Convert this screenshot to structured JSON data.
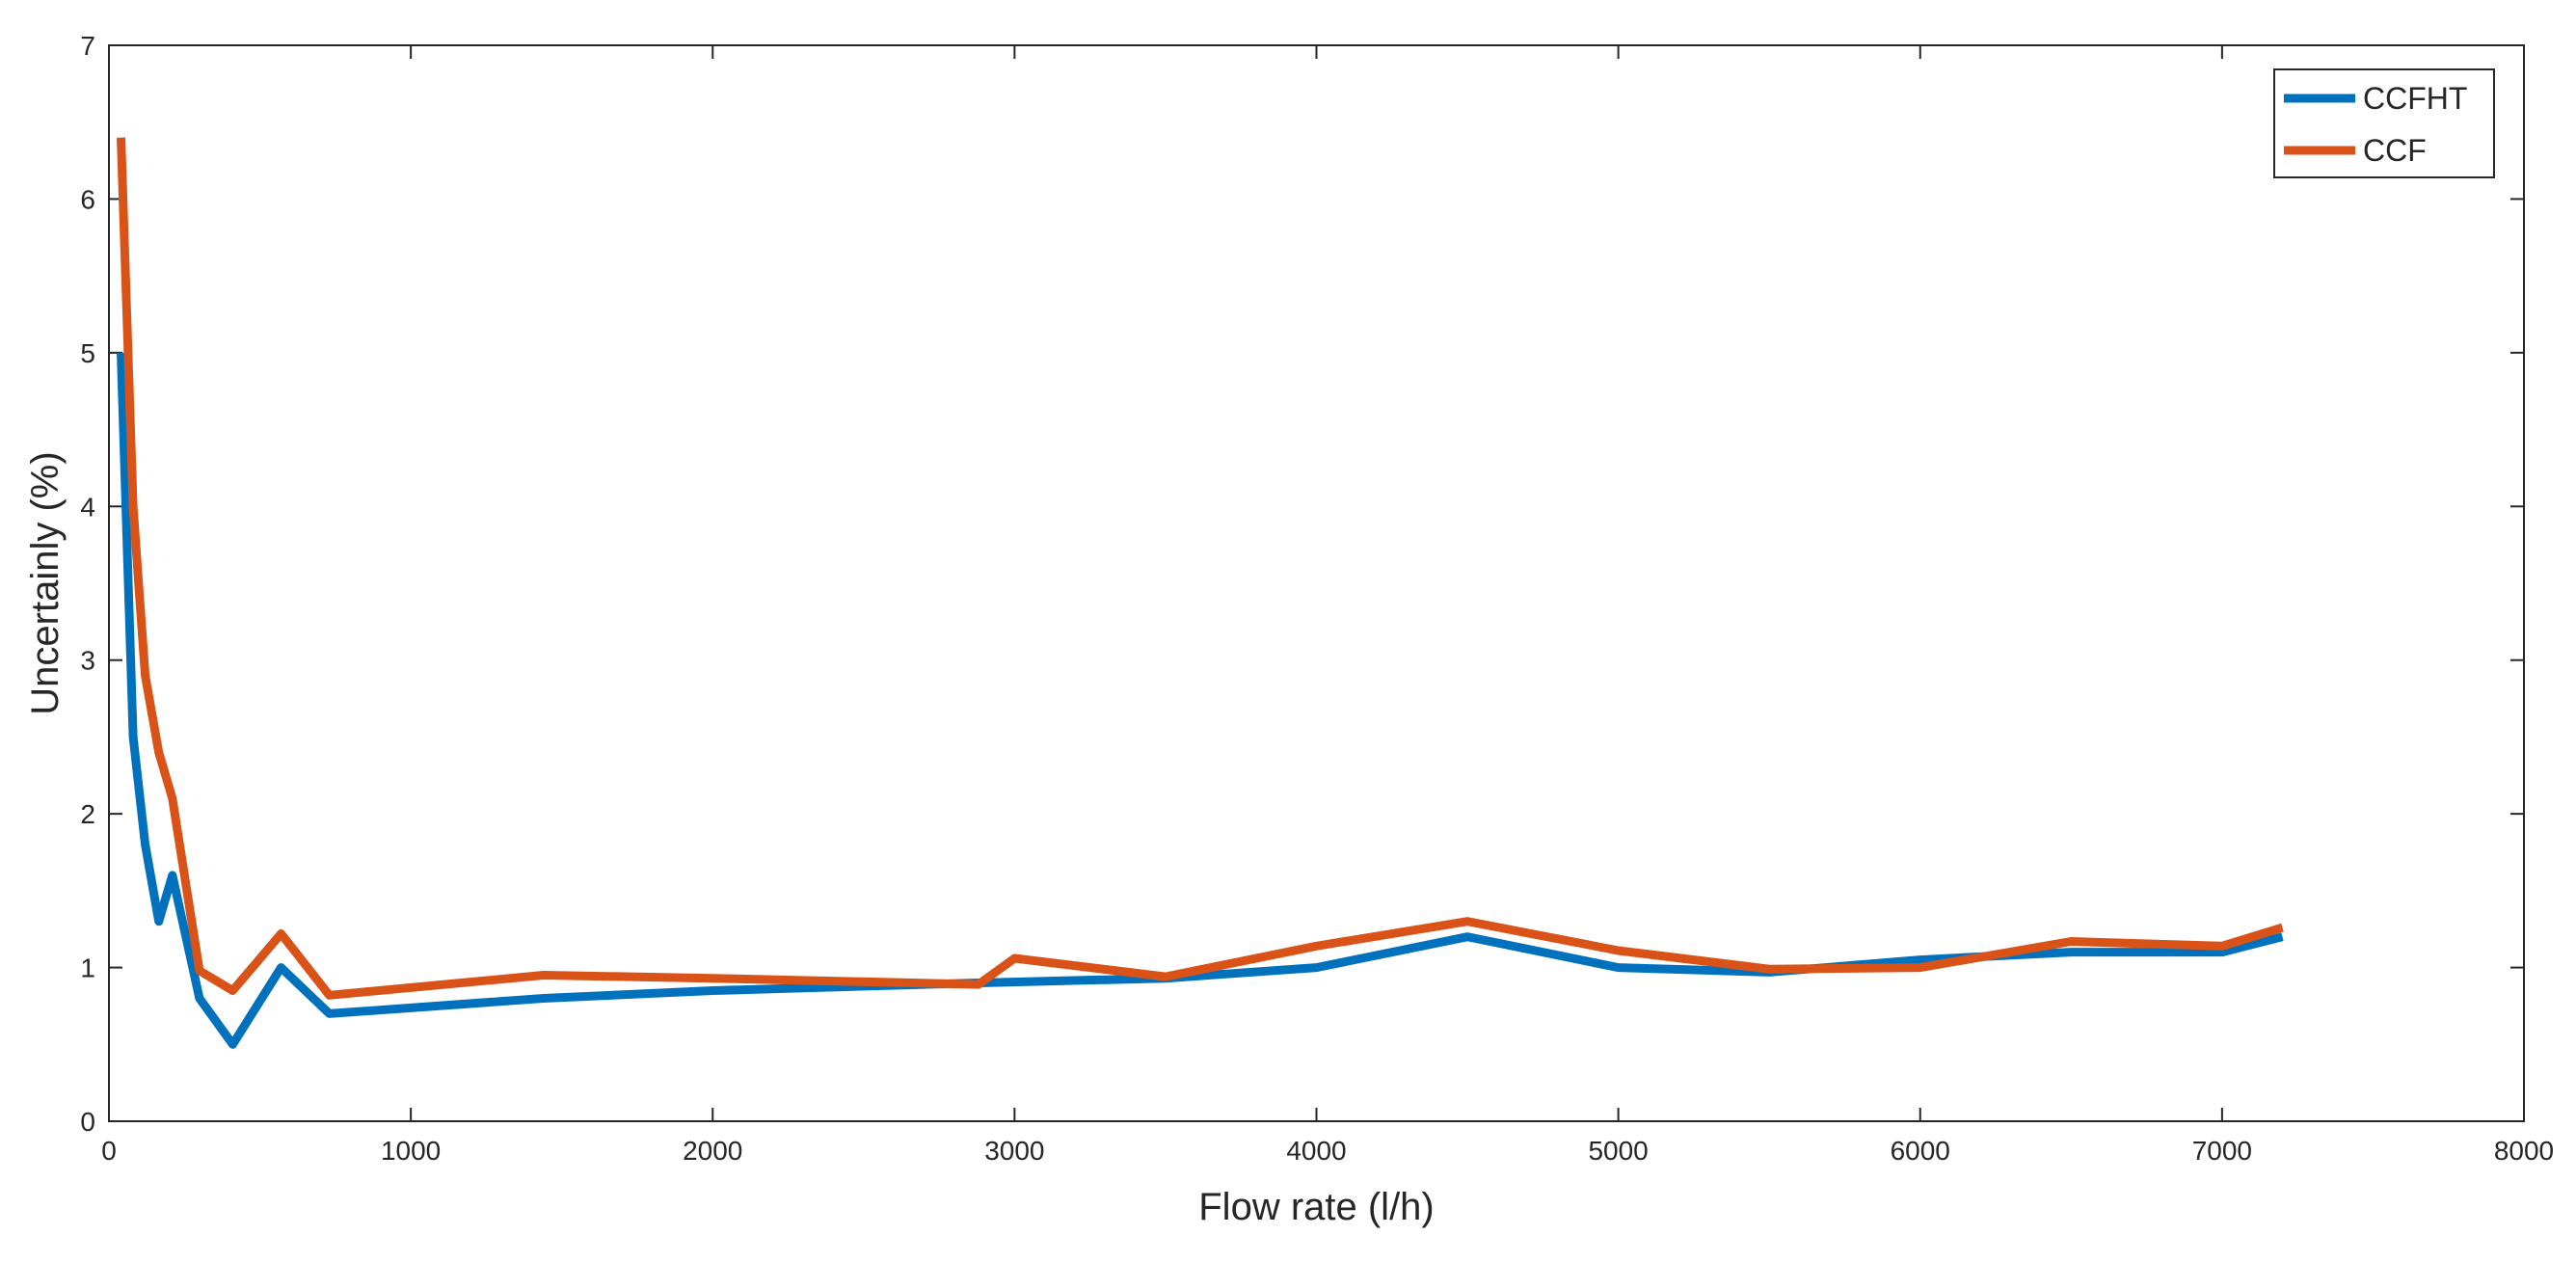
{
  "chart_data": {
    "type": "line",
    "title": "",
    "xlabel": "Flow rate (l/h)",
    "ylabel": "Uncertainly (%)",
    "xlim": [
      0,
      8000
    ],
    "ylim": [
      0,
      7
    ],
    "xticks": [
      0,
      1000,
      2000,
      3000,
      4000,
      5000,
      6000,
      7000,
      8000
    ],
    "yticks": [
      0,
      1,
      2,
      3,
      4,
      5,
      6,
      7
    ],
    "grid": false,
    "box": true,
    "legend_position": "top-right",
    "series": [
      {
        "name": "CCFHT",
        "color": "#0072BD",
        "points": [
          [
            40,
            5.0
          ],
          [
            80,
            2.5
          ],
          [
            120,
            1.8
          ],
          [
            165,
            1.3
          ],
          [
            210,
            1.6
          ],
          [
            300,
            0.8
          ],
          [
            410,
            0.5
          ],
          [
            570,
            1.0
          ],
          [
            730,
            0.7
          ],
          [
            1440,
            0.8
          ],
          [
            2000,
            0.85
          ],
          [
            2880,
            0.9
          ],
          [
            3500,
            0.93
          ],
          [
            4000,
            1.0
          ],
          [
            4500,
            1.2
          ],
          [
            5000,
            1.0
          ],
          [
            5500,
            0.97
          ],
          [
            6000,
            1.05
          ],
          [
            6500,
            1.1
          ],
          [
            7000,
            1.1
          ],
          [
            7200,
            1.2
          ]
        ]
      },
      {
        "name": "CCF",
        "color": "#D95319",
        "points": [
          [
            40,
            6.4
          ],
          [
            80,
            4.0
          ],
          [
            120,
            2.9
          ],
          [
            165,
            2.4
          ],
          [
            210,
            2.1
          ],
          [
            300,
            0.98
          ],
          [
            410,
            0.85
          ],
          [
            570,
            1.22
          ],
          [
            730,
            0.82
          ],
          [
            1440,
            0.95
          ],
          [
            2000,
            0.93
          ],
          [
            2880,
            0.89
          ],
          [
            3000,
            1.06
          ],
          [
            3500,
            0.94
          ],
          [
            4000,
            1.14
          ],
          [
            4500,
            1.3
          ],
          [
            5000,
            1.11
          ],
          [
            5500,
            0.99
          ],
          [
            6000,
            1.0
          ],
          [
            6500,
            1.17
          ],
          [
            7000,
            1.14
          ],
          [
            7200,
            1.26
          ]
        ]
      }
    ]
  }
}
